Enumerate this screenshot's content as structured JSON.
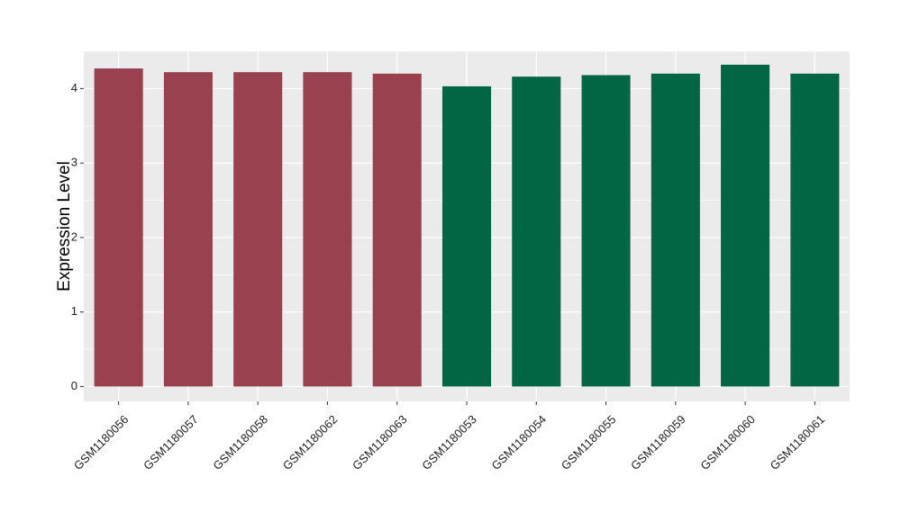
{
  "chart_data": {
    "type": "bar",
    "title": "",
    "xlabel": "",
    "ylabel": "Expression Level",
    "categories": [
      "GSM1180056",
      "GSM1180057",
      "GSM1180058",
      "GSM1180062",
      "GSM1180063",
      "GSM1180053",
      "GSM1180054",
      "GSM1180055",
      "GSM1180059",
      "GSM1180060",
      "GSM1180061"
    ],
    "values": [
      4.27,
      4.22,
      4.22,
      4.22,
      4.2,
      4.03,
      4.16,
      4.18,
      4.2,
      4.32,
      4.2
    ],
    "groups": [
      0,
      0,
      0,
      0,
      0,
      1,
      1,
      1,
      1,
      1,
      1
    ],
    "group_colors": [
      "#99414f",
      "#026644"
    ],
    "ylim": [
      -0.2,
      4.5
    ],
    "yticks": [
      0,
      1,
      2,
      3,
      4
    ],
    "grid": true,
    "legend": "none",
    "panel_background": "#ebebeb",
    "grid_color": "#ffffff"
  }
}
